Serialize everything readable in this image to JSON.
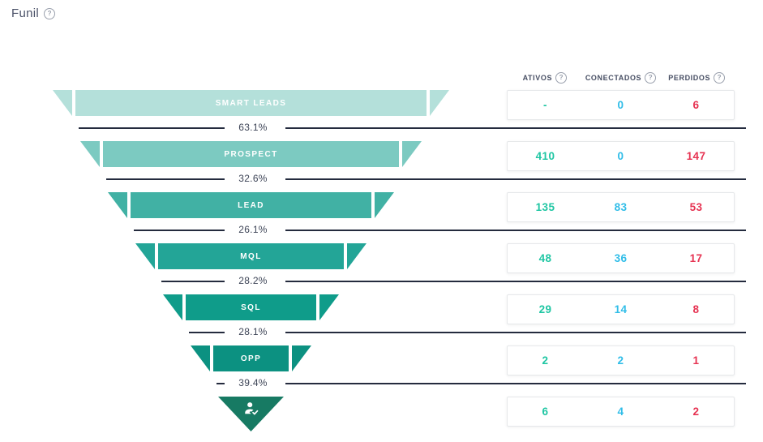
{
  "title": {
    "label": "Funil"
  },
  "icons": {
    "help_glyph": "?",
    "final_stage": "person-check-icon"
  },
  "colors": {
    "ativos": "#1fc6a3",
    "conectados": "#30bde8",
    "perdidos": "#e63352",
    "line": "#242b3e",
    "percent_text": "#3e4557",
    "header_text": "#474e63"
  },
  "table": {
    "columns": [
      {
        "label": "ATIVOS"
      },
      {
        "label": "CONECTADOS"
      },
      {
        "label": "PERDIDOS"
      }
    ]
  },
  "funnel": {
    "stages": [
      {
        "label": "SMART LEADS",
        "color": "#b4e0da",
        "ativos": "-",
        "conectados": "0",
        "perdidos": "6",
        "conversion_to_next": "63.1%"
      },
      {
        "label": "PROSPECT",
        "color": "#7ccac1",
        "ativos": "410",
        "conectados": "0",
        "perdidos": "147",
        "conversion_to_next": "32.6%"
      },
      {
        "label": "LEAD",
        "color": "#41b1a4",
        "ativos": "135",
        "conectados": "83",
        "perdidos": "53",
        "conversion_to_next": "26.1%"
      },
      {
        "label": "MQL",
        "color": "#23a597",
        "ativos": "48",
        "conectados": "36",
        "perdidos": "17",
        "conversion_to_next": "28.2%"
      },
      {
        "label": "SQL",
        "color": "#0f9c8a",
        "ativos": "29",
        "conectados": "14",
        "perdidos": "8",
        "conversion_to_next": "28.1%"
      },
      {
        "label": "OPP",
        "color": "#0c9181",
        "ativos": "2",
        "conectados": "2",
        "perdidos": "1",
        "conversion_to_next": "39.4%"
      },
      {
        "label": "",
        "color": "#177a63",
        "icon": "person-check-icon",
        "ativos": "6",
        "conectados": "4",
        "perdidos": "2"
      }
    ]
  },
  "chart_data": {
    "type": "funnel",
    "title": "Funil",
    "categories": [
      "SMART LEADS",
      "PROSPECT",
      "LEAD",
      "MQL",
      "SQL",
      "OPP",
      ""
    ],
    "series": [
      {
        "name": "ATIVOS",
        "values": [
          null,
          410,
          135,
          48,
          29,
          2,
          6
        ]
      },
      {
        "name": "CONECTADOS",
        "values": [
          0,
          0,
          83,
          36,
          14,
          2,
          4
        ]
      },
      {
        "name": "PERDIDOS",
        "values": [
          6,
          147,
          53,
          17,
          8,
          1,
          2
        ]
      }
    ],
    "conversion_rates_pct": [
      63.1,
      32.6,
      26.1,
      28.2,
      28.1,
      39.4
    ],
    "legend_position": "top",
    "grid": false
  }
}
